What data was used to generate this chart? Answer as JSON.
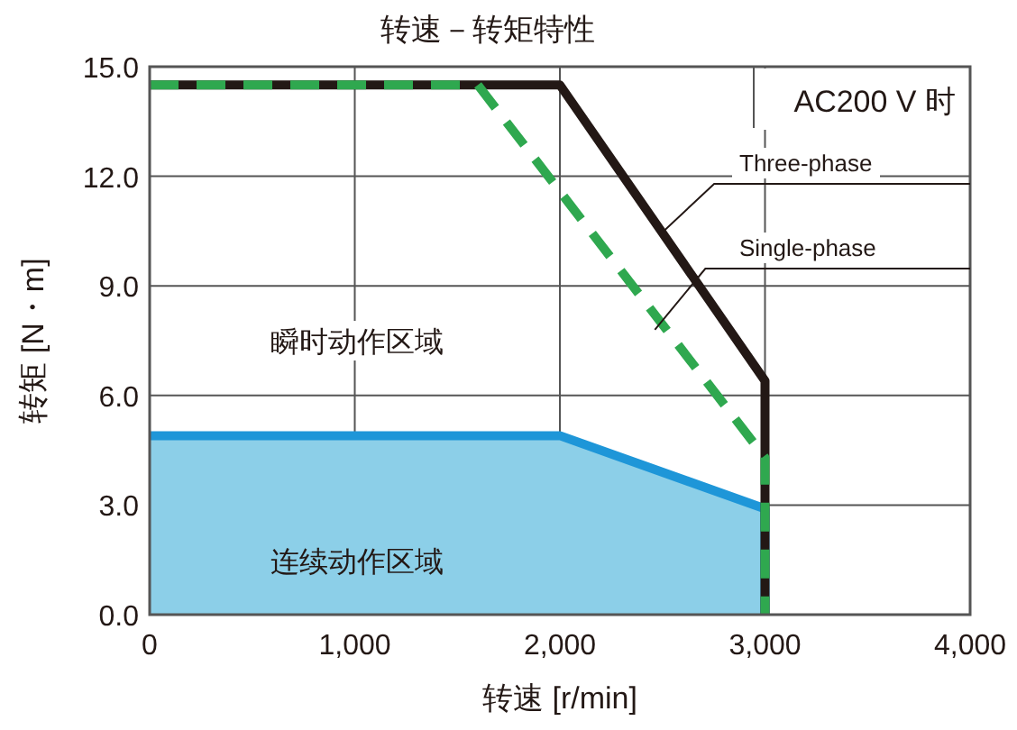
{
  "chart_data": {
    "type": "line",
    "title": "转速－转矩特性",
    "xlabel": "转速 [r/min]",
    "ylabel": "转矩 [N・m]",
    "xlim": [
      0,
      4000
    ],
    "ylim": [
      0,
      15
    ],
    "xticks": [
      0,
      {
        "value": 1000,
        "label": "1,000"
      },
      {
        "value": 2000,
        "label": "2,000"
      },
      {
        "value": 3000,
        "label": "3,000"
      },
      {
        "value": 4000,
        "label": "4,000"
      }
    ],
    "yticks": [
      {
        "value": 0,
        "label": "0.0"
      },
      {
        "value": 3,
        "label": "3.0"
      },
      {
        "value": 6,
        "label": "6.0"
      },
      {
        "value": 9,
        "label": "9.0"
      },
      {
        "value": 12,
        "label": "12.0"
      },
      {
        "value": 15,
        "label": "15.0"
      }
    ],
    "grid": true,
    "series": [
      {
        "type": "area",
        "color": "#1e96d8",
        "x": [
          0,
          2000,
          3000,
          3000
        ],
        "values": [
          4.9,
          4.9,
          2.9,
          0
        ]
      },
      {
        "type": "line",
        "name": "Three-phase",
        "color": "#231815",
        "line_style": "solid",
        "x": [
          0,
          2000,
          3000,
          3000
        ],
        "values": [
          14.5,
          14.5,
          6.4,
          0
        ]
      },
      {
        "type": "line",
        "name": "Single-phase",
        "color": "#2fa84f",
        "line_style": "dashed",
        "x": [
          0,
          1600,
          3000,
          3000
        ],
        "values": [
          14.5,
          14.5,
          4.3,
          0
        ]
      }
    ],
    "annotations": [
      "AC200 V 时",
      "瞬时动作区域",
      "连续动作区域"
    ]
  }
}
